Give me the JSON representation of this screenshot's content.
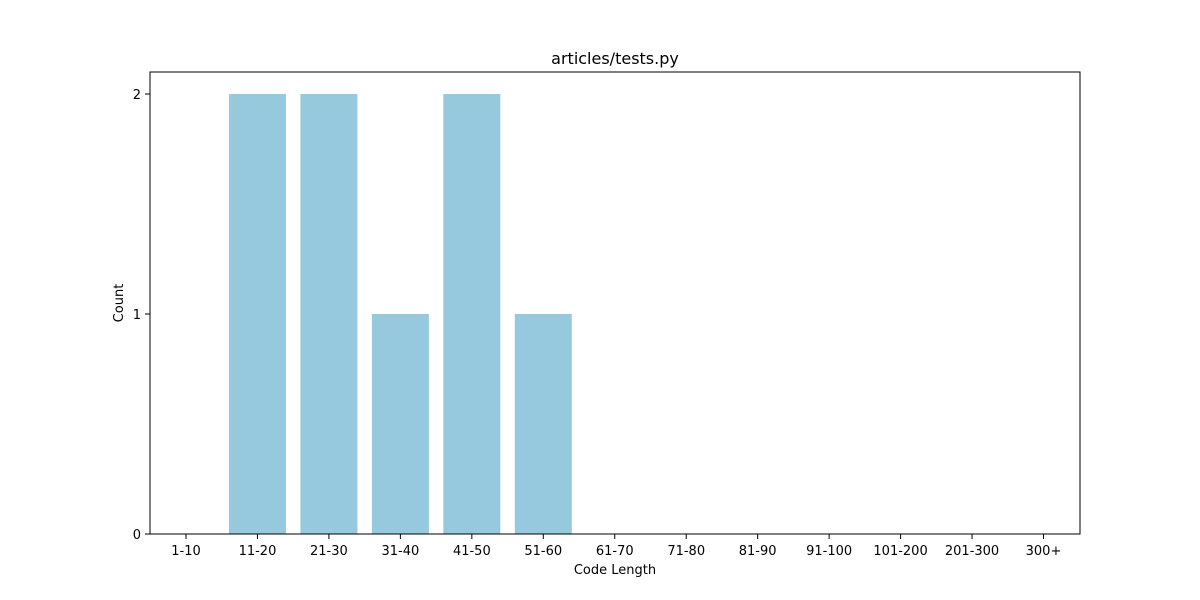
{
  "chart_data": {
    "type": "bar",
    "title": "articles/tests.py",
    "xlabel": "Code Length",
    "ylabel": "Count",
    "categories": [
      "1-10",
      "11-20",
      "21-30",
      "31-40",
      "41-50",
      "51-60",
      "61-70",
      "71-80",
      "81-90",
      "91-100",
      "101-200",
      "201-300",
      "300+"
    ],
    "values": [
      0,
      2,
      2,
      1,
      2,
      1,
      0,
      0,
      0,
      0,
      0,
      0,
      0
    ],
    "ylim": [
      0,
      2.1
    ],
    "yticks": [
      0,
      1,
      2
    ],
    "bar_color": "#96c9de",
    "grid": false,
    "legend": false
  }
}
